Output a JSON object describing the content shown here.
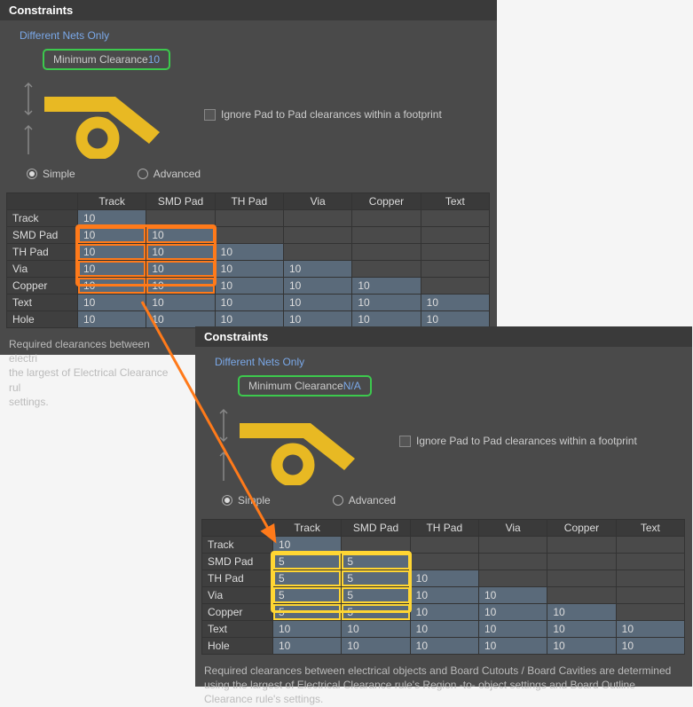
{
  "panel1": {
    "title": "Constraints",
    "subtitle": "Different Nets Only",
    "min_clearance_label": "Minimum Clearance",
    "min_clearance_value": "10",
    "checkbox_label": "Ignore Pad to Pad clearances within a footprint",
    "radio_simple": "Simple",
    "radio_advanced": "Advanced",
    "columns": [
      "",
      "Track",
      "SMD Pad",
      "TH Pad",
      "Via",
      "Copper",
      "Text"
    ],
    "rows": [
      {
        "label": "Track",
        "cells": [
          "10",
          "",
          "",
          "",
          "",
          ""
        ]
      },
      {
        "label": "SMD Pad",
        "cells": [
          "10",
          "10",
          "",
          "",
          "",
          ""
        ]
      },
      {
        "label": "TH Pad",
        "cells": [
          "10",
          "10",
          "10",
          "",
          "",
          ""
        ]
      },
      {
        "label": "Via",
        "cells": [
          "10",
          "10",
          "10",
          "10",
          "",
          ""
        ]
      },
      {
        "label": "Copper",
        "cells": [
          "10",
          "10",
          "10",
          "10",
          "10",
          ""
        ]
      },
      {
        "label": "Text",
        "cells": [
          "10",
          "10",
          "10",
          "10",
          "10",
          "10"
        ]
      },
      {
        "label": "Hole",
        "cells": [
          "10",
          "10",
          "10",
          "10",
          "10",
          "10"
        ]
      }
    ],
    "highlight": {
      "color": "#ff7a1a",
      "row_start": 1,
      "row_end": 4,
      "col_start": 0,
      "col_end": 1
    },
    "footer": "Required clearances between electrical objects and Board Cutouts / Board Cavities are determined using the largest of Electrical Clearance rule's Region -to- object settings and Board Outline Clearance rule's settings."
  },
  "panel2": {
    "title": "Constraints",
    "subtitle": "Different Nets Only",
    "min_clearance_label": "Minimum Clearance",
    "min_clearance_value": "N/A",
    "checkbox_label": "Ignore Pad to Pad clearances within a footprint",
    "radio_simple": "Simple",
    "radio_advanced": "Advanced",
    "columns": [
      "",
      "Track",
      "SMD Pad",
      "TH Pad",
      "Via",
      "Copper",
      "Text"
    ],
    "rows": [
      {
        "label": "Track",
        "cells": [
          "10",
          "",
          "",
          "",
          "",
          ""
        ]
      },
      {
        "label": "SMD Pad",
        "cells": [
          "5",
          "5",
          "",
          "",
          "",
          ""
        ]
      },
      {
        "label": "TH Pad",
        "cells": [
          "5",
          "5",
          "10",
          "",
          "",
          ""
        ]
      },
      {
        "label": "Via",
        "cells": [
          "5",
          "5",
          "10",
          "10",
          "",
          ""
        ]
      },
      {
        "label": "Copper",
        "cells": [
          "5",
          "5",
          "10",
          "10",
          "10",
          ""
        ]
      },
      {
        "label": "Text",
        "cells": [
          "10",
          "10",
          "10",
          "10",
          "10",
          "10"
        ]
      },
      {
        "label": "Hole",
        "cells": [
          "10",
          "10",
          "10",
          "10",
          "10",
          "10"
        ]
      }
    ],
    "highlight": {
      "color": "#ffd633",
      "row_start": 1,
      "row_end": 4,
      "col_start": 0,
      "col_end": 1
    },
    "footer": "Required clearances between electrical objects and Board Cutouts / Board Cavities are determined using the largest of Electrical Clearance rule's Region -to- object settings and Board Outline Clearance rule's settings."
  },
  "diagram": {
    "shape_color": "#e8b923",
    "arrow_color": "#888"
  },
  "connector_arrow_color": "#ff7a1a"
}
